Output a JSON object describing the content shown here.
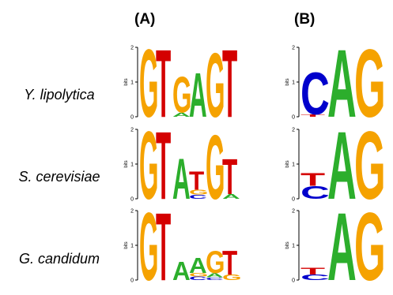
{
  "panels": {
    "a": "(A)",
    "b": "(B)"
  },
  "species": [
    "Y. lipolytica",
    "S. cerevisiae",
    "G. candidum"
  ],
  "axis_label": "bits",
  "ticks": [
    "2",
    "1",
    "0"
  ],
  "colors": {
    "G": "#f5a200",
    "T": "#d40000",
    "A": "#2cae2c",
    "C": "#0000cc"
  },
  "logos": [
    {
      "panel": "A",
      "row": 0,
      "positions": [
        [
          [
            "G",
            2.0
          ]
        ],
        [
          [
            "T",
            2.0
          ]
        ],
        [
          [
            "A",
            0.12
          ],
          [
            "G",
            1.06
          ]
        ],
        [
          [
            "A",
            1.3
          ]
        ],
        [
          [
            "G",
            1.9
          ]
        ],
        [
          [
            "T",
            2.0
          ]
        ]
      ]
    },
    {
      "panel": "B",
      "row": 0,
      "positions": [
        [
          [
            "T",
            0.07
          ],
          [
            "C",
            1.25
          ]
        ],
        [
          [
            "A",
            2.0
          ]
        ],
        [
          [
            "G",
            2.0
          ]
        ]
      ]
    },
    {
      "panel": "A",
      "row": 1,
      "positions": [
        [
          [
            "G",
            2.0
          ]
        ],
        [
          [
            "T",
            2.0
          ]
        ],
        [
          [
            "A",
            1.2
          ]
        ],
        [
          [
            "C",
            0.12
          ],
          [
            "G",
            0.14
          ],
          [
            "T",
            0.55
          ]
        ],
        [
          [
            "G",
            1.9
          ]
        ],
        [
          [
            "A",
            0.14
          ],
          [
            "T",
            1.05
          ]
        ]
      ]
    },
    {
      "panel": "B",
      "row": 1,
      "positions": [
        [
          [
            "C",
            0.38
          ],
          [
            "T",
            0.38
          ]
        ],
        [
          [
            "A",
            2.0
          ]
        ],
        [
          [
            "G",
            2.0
          ]
        ]
      ]
    },
    {
      "panel": "A",
      "row": 2,
      "positions": [
        [
          [
            "G",
            2.0
          ]
        ],
        [
          [
            "T",
            2.0
          ]
        ],
        [
          [
            "A",
            0.55
          ]
        ],
        [
          [
            "C",
            0.1
          ],
          [
            "G",
            0.1
          ],
          [
            "A",
            0.45
          ]
        ],
        [
          [
            "C",
            0.08
          ],
          [
            "A",
            0.12
          ],
          [
            "G",
            0.65
          ]
        ],
        [
          [
            "G",
            0.16
          ],
          [
            "T",
            0.72
          ]
        ]
      ]
    },
    {
      "panel": "B",
      "row": 2,
      "positions": [
        [
          [
            "C",
            0.16
          ],
          [
            "T",
            0.2
          ]
        ],
        [
          [
            "A",
            2.0
          ]
        ],
        [
          [
            "G",
            2.0
          ]
        ]
      ]
    }
  ]
}
